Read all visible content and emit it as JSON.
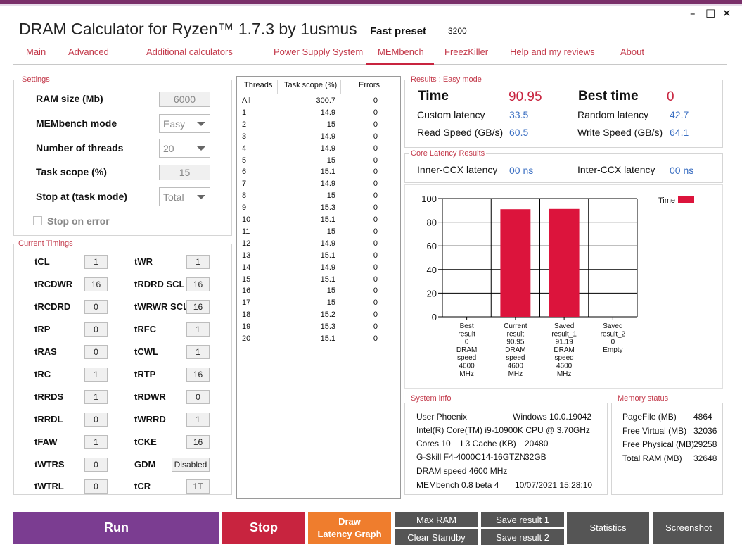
{
  "window": {
    "title": "DRAM Calculator for Ryzen™ 1.7.3 by 1usmus",
    "preset_label": "Fast preset",
    "preset_value": "3200",
    "minimize": "–",
    "maximize": "□",
    "close": "✕"
  },
  "tabs": [
    {
      "label": "Main"
    },
    {
      "label": "Advanced"
    },
    {
      "label": "Additional calculators"
    },
    {
      "label": "Power Supply System"
    },
    {
      "label": "MEMbench"
    },
    {
      "label": "FreezKiller"
    },
    {
      "label": "Help and my reviews"
    },
    {
      "label": "About"
    }
  ],
  "settings": {
    "title": "Settings",
    "ram_size_label": "RAM size (Mb)",
    "ram_size_value": "6000",
    "mode_label": "MEMbench mode",
    "mode_value": "Easy",
    "threads_label": "Number of threads",
    "threads_value": "20",
    "scope_label": "Task scope (%)",
    "scope_value": "15",
    "stop_label": "Stop at (task mode)",
    "stop_value": "Total",
    "stop_on_error": "Stop on error"
  },
  "timings": {
    "title": "Current Timings",
    "left": [
      {
        "name": "tCL",
        "value": "1"
      },
      {
        "name": "tRCDWR",
        "value": "16"
      },
      {
        "name": "tRCDRD",
        "value": "0"
      },
      {
        "name": "tRP",
        "value": "0"
      },
      {
        "name": "tRAS",
        "value": "0"
      },
      {
        "name": "tRC",
        "value": "1"
      },
      {
        "name": "tRRDS",
        "value": "1"
      },
      {
        "name": "tRRDL",
        "value": "0"
      },
      {
        "name": "tFAW",
        "value": "1"
      },
      {
        "name": "tWTRS",
        "value": "0"
      },
      {
        "name": "tWTRL",
        "value": "0"
      }
    ],
    "right": [
      {
        "name": "tWR",
        "value": "1"
      },
      {
        "name": "tRDRD SCL",
        "value": "16"
      },
      {
        "name": "tWRWR SCL",
        "value": "16"
      },
      {
        "name": "tRFC",
        "value": "1"
      },
      {
        "name": "tCWL",
        "value": "1"
      },
      {
        "name": "tRTP",
        "value": "16"
      },
      {
        "name": "tRDWR",
        "value": "0"
      },
      {
        "name": "tWRRD",
        "value": "1"
      },
      {
        "name": "tCKE",
        "value": "16"
      },
      {
        "name": "GDM",
        "value": "Disabled"
      },
      {
        "name": "tCR",
        "value": "1T"
      }
    ]
  },
  "threads_table": {
    "headers": [
      "Threads",
      "Task scope (%)",
      "Errors"
    ],
    "rows": [
      [
        "All",
        "300.7",
        "0"
      ],
      [
        "1",
        "14.9",
        "0"
      ],
      [
        "2",
        "15",
        "0"
      ],
      [
        "3",
        "14.9",
        "0"
      ],
      [
        "4",
        "14.9",
        "0"
      ],
      [
        "5",
        "15",
        "0"
      ],
      [
        "6",
        "15.1",
        "0"
      ],
      [
        "7",
        "14.9",
        "0"
      ],
      [
        "8",
        "15",
        "0"
      ],
      [
        "9",
        "15.3",
        "0"
      ],
      [
        "10",
        "15.1",
        "0"
      ],
      [
        "11",
        "15",
        "0"
      ],
      [
        "12",
        "14.9",
        "0"
      ],
      [
        "13",
        "15.1",
        "0"
      ],
      [
        "14",
        "14.9",
        "0"
      ],
      [
        "15",
        "15.1",
        "0"
      ],
      [
        "16",
        "15",
        "0"
      ],
      [
        "17",
        "15",
        "0"
      ],
      [
        "18",
        "15.2",
        "0"
      ],
      [
        "19",
        "15.3",
        "0"
      ],
      [
        "20",
        "15.1",
        "0"
      ]
    ]
  },
  "results": {
    "title": "Results : Easy mode",
    "time_label": "Time",
    "time_value": "90.95",
    "best_label": "Best time",
    "best_value": "0",
    "custom_label": "Custom latency",
    "custom_value": "33.5",
    "random_label": "Random latency",
    "random_value": "42.7",
    "read_label": "Read Speed (GB/s)",
    "read_value": "60.5",
    "write_label": "Write Speed (GB/s)",
    "write_value": "64.1"
  },
  "core_latency": {
    "title": "Core Latency Results",
    "inner_label": "Inner-CCX latency",
    "inner_value": "00 ns",
    "inter_label": "Inter-CCX latency",
    "inter_value": "00 ns"
  },
  "chart_data": {
    "type": "bar",
    "legend": "Time",
    "ylim": [
      0,
      100
    ],
    "yticks": [
      "0",
      "20",
      "40",
      "60",
      "80",
      "100"
    ],
    "grid": true,
    "legend_position": "top-right",
    "bar_color": "#dc143c",
    "categories": [
      [
        "Best",
        "result",
        "0",
        "DRAM",
        "speed",
        "4600",
        "MHz"
      ],
      [
        "Current",
        "result",
        "90.95",
        "DRAM",
        "speed",
        "4600",
        "MHz"
      ],
      [
        "Saved",
        "result_1",
        "91.19",
        "DRAM",
        "speed",
        "4600",
        "MHz"
      ],
      [
        "Saved",
        "result_2",
        "0",
        "Empty"
      ]
    ],
    "values": [
      0,
      90.95,
      91.19,
      0
    ]
  },
  "system_info": {
    "title": "System info",
    "user": "User Phoenix",
    "os": "Windows 10.0.19042",
    "cpu": "Intel(R) Core(TM) i9-10900K CPU @ 3.70GHz",
    "cores": "Cores 10",
    "l3_label": "L3 Cache (KB)",
    "l3_value": "20480",
    "memory": "G-Skill F4-4000C14-16GTZN",
    "memory_size": "32GB",
    "dram_speed": "DRAM speed 4600 MHz",
    "version": "MEMbench 0.8 beta 4",
    "datetime": "10/07/2021 15:28:10"
  },
  "memory_status": {
    "title": "Memory status",
    "rows": [
      {
        "label": "PageFile (MB)",
        "value": "4864"
      },
      {
        "label": "Free Virtual (MB)",
        "value": "32036"
      },
      {
        "label": "Free Physical (MB)",
        "value": "29258"
      },
      {
        "label": "Total RAM (MB)",
        "value": "32648"
      }
    ]
  },
  "buttons": {
    "run": "Run",
    "stop": "Stop",
    "draw_line1": "Draw",
    "draw_line2": "Latency Graph",
    "max_ram": "Max RAM",
    "clear_standby": "Clear Standby",
    "save1": "Save result 1",
    "save2": "Save result 2",
    "statistics": "Statistics",
    "screenshot": "Screenshot"
  },
  "colors": {
    "accent": "#c8243f",
    "run": "#7b3d91",
    "stop": "#c8243f",
    "draw": "#ef7d2d",
    "gray_button": "#555555",
    "link_blue": "#3b6fc2"
  }
}
